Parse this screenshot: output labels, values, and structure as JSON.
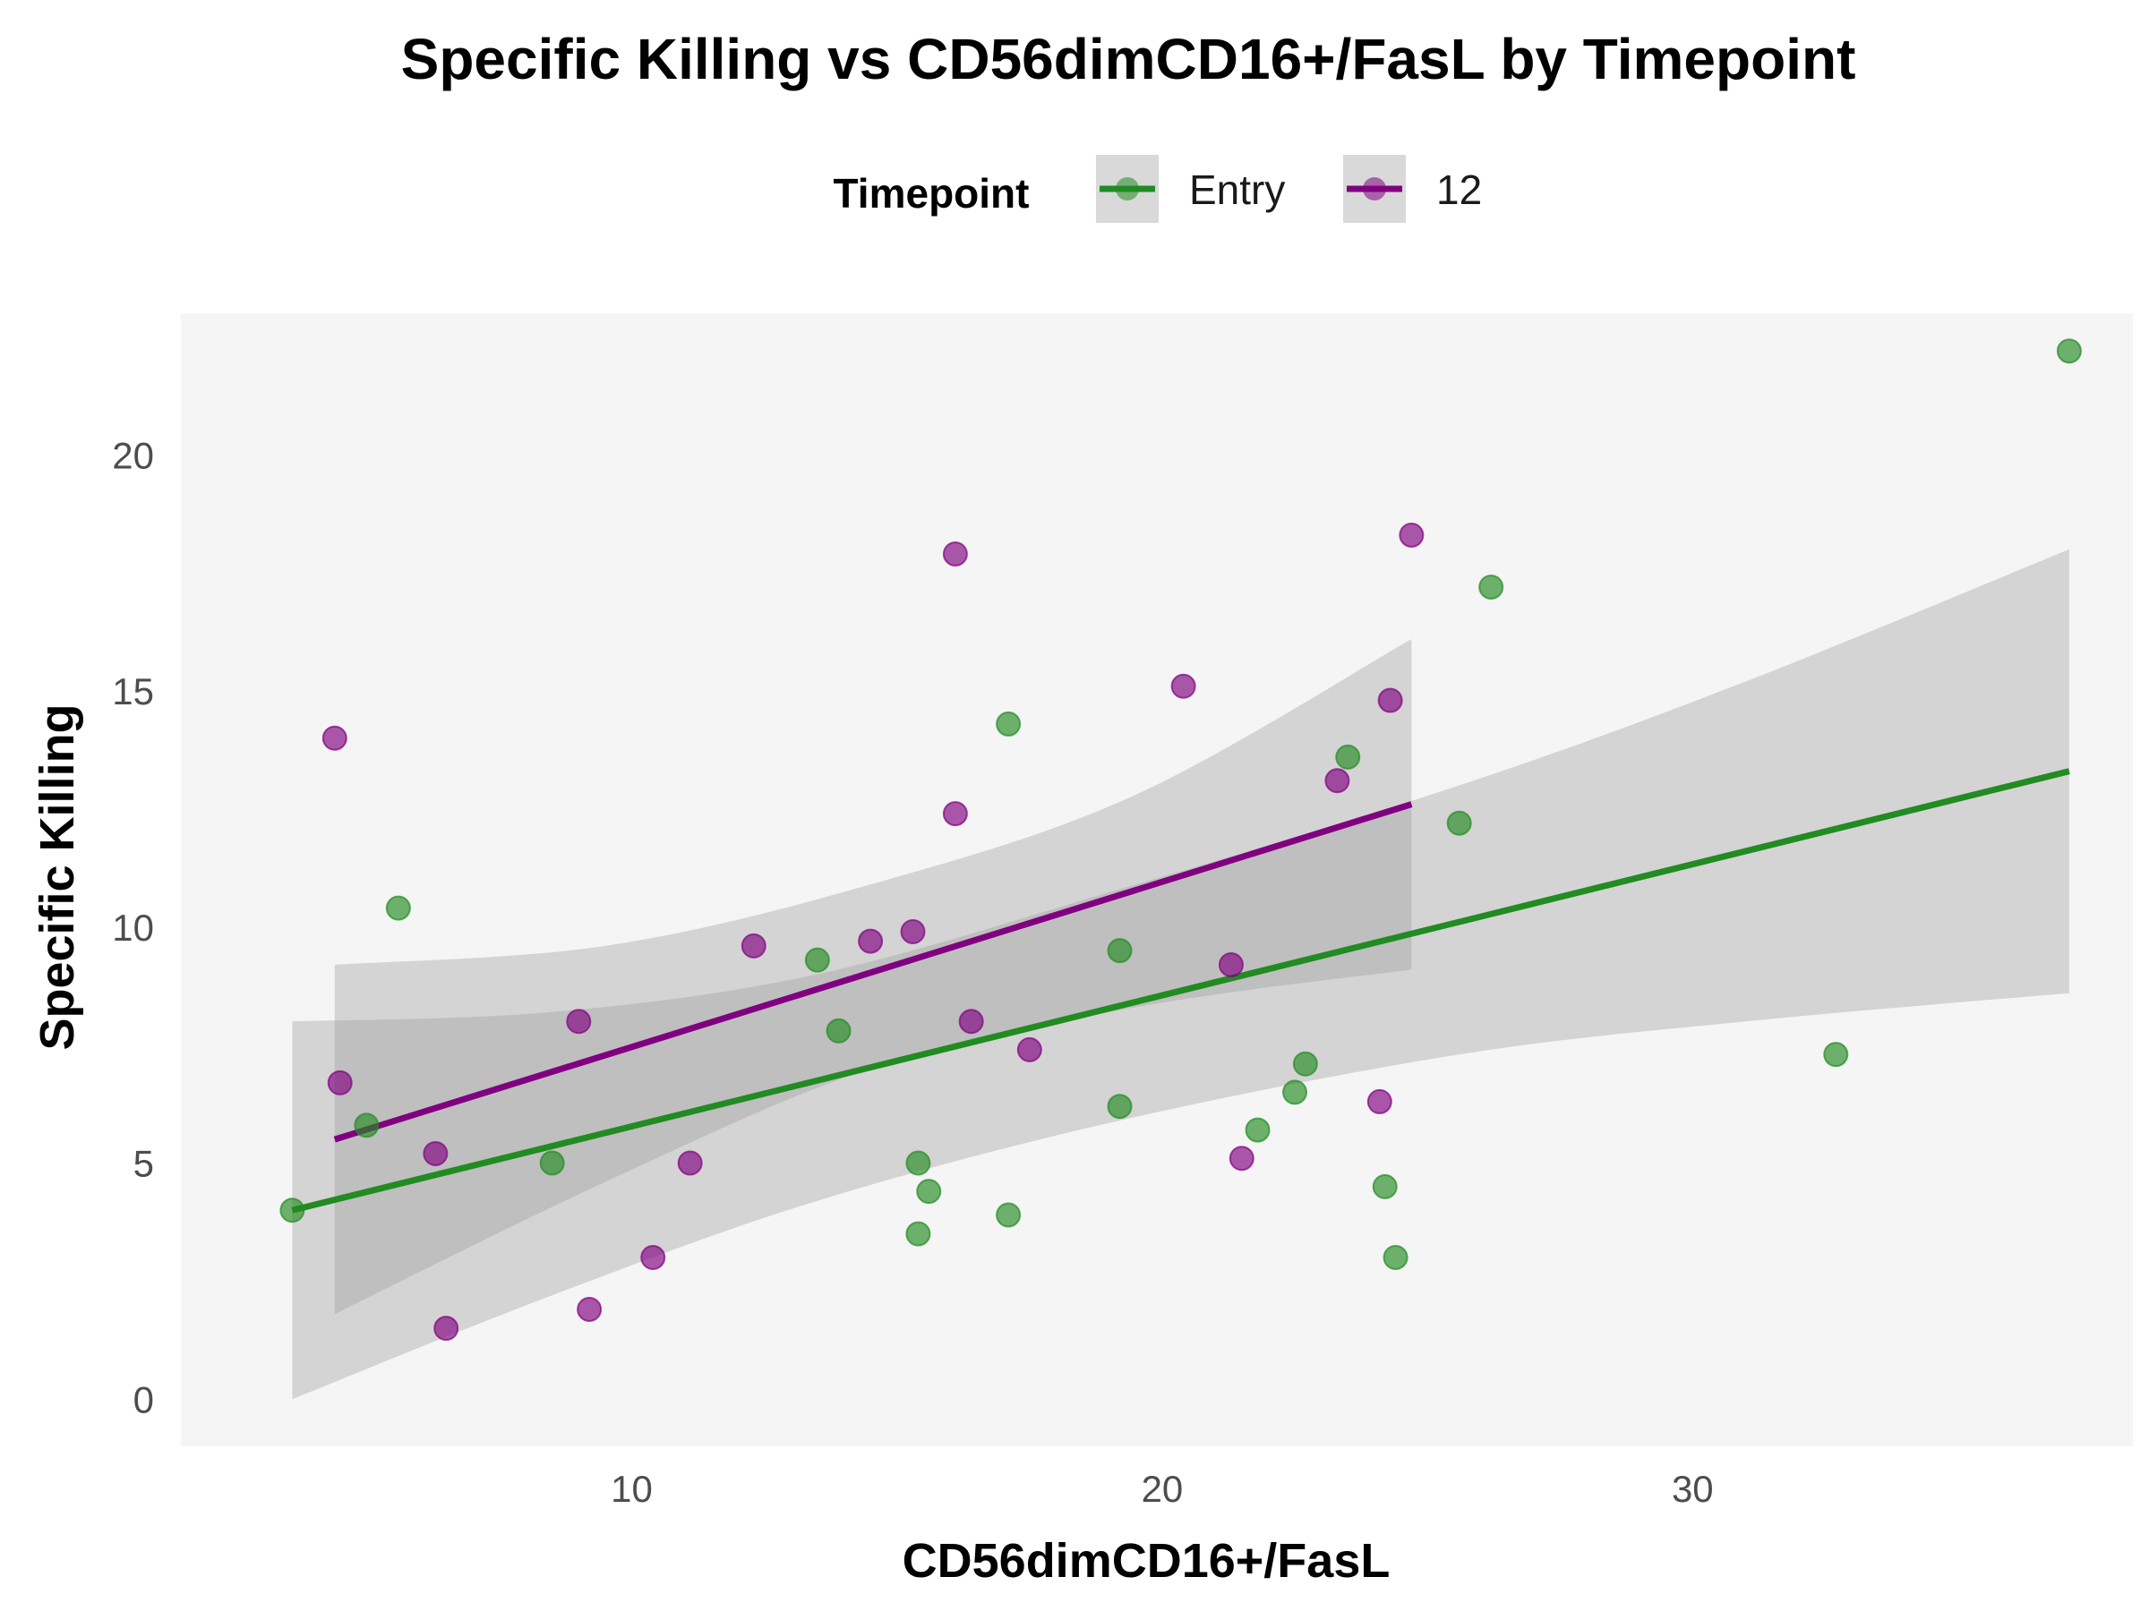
{
  "chart_data": {
    "type": "scatter",
    "title": "Specific Killing vs CD56dimCD16+/FasL by Timepoint",
    "xlabel": "CD56dimCD16+/FasL",
    "ylabel": "Specific Killing",
    "xlim": [
      1.5,
      38.3
    ],
    "ylim": [
      -1.0,
      23.0
    ],
    "x_ticks": [
      10,
      20,
      30
    ],
    "y_ticks": [
      0,
      5,
      10,
      15,
      20
    ],
    "grid": false,
    "panel_background": "#f5f5f5",
    "legend": {
      "title": "Timepoint",
      "position": "top"
    },
    "series": [
      {
        "name": "Entry",
        "color": "#228b22",
        "points": [
          {
            "x": 3.6,
            "y": 4.0
          },
          {
            "x": 5.0,
            "y": 5.8
          },
          {
            "x": 5.6,
            "y": 10.4
          },
          {
            "x": 8.5,
            "y": 5.0
          },
          {
            "x": 13.5,
            "y": 9.3
          },
          {
            "x": 13.9,
            "y": 7.8
          },
          {
            "x": 15.4,
            "y": 3.5
          },
          {
            "x": 15.4,
            "y": 5.0
          },
          {
            "x": 15.6,
            "y": 4.4
          },
          {
            "x": 17.1,
            "y": 14.3
          },
          {
            "x": 17.1,
            "y": 3.9
          },
          {
            "x": 19.2,
            "y": 9.5
          },
          {
            "x": 19.2,
            "y": 6.2
          },
          {
            "x": 21.8,
            "y": 5.7
          },
          {
            "x": 22.5,
            "y": 6.5
          },
          {
            "x": 22.7,
            "y": 7.1
          },
          {
            "x": 23.5,
            "y": 13.6
          },
          {
            "x": 24.2,
            "y": 4.5
          },
          {
            "x": 24.4,
            "y": 3.0
          },
          {
            "x": 25.6,
            "y": 12.2
          },
          {
            "x": 26.2,
            "y": 17.2
          },
          {
            "x": 32.7,
            "y": 7.3
          },
          {
            "x": 37.1,
            "y": 22.2
          }
        ],
        "fit": {
          "x": [
            3.6,
            37.1
          ],
          "y": [
            4.0,
            13.3
          ]
        },
        "ci_band": {
          "x": [
            3.6,
            8.5,
            13.5,
            19.2,
            25.6,
            31.0,
            37.1
          ],
          "lower": [
            0.0,
            2.2,
            4.2,
            5.9,
            7.3,
            8.0,
            8.6
          ],
          "upper": [
            8.0,
            8.2,
            9.0,
            10.8,
            13.0,
            15.2,
            18.0
          ]
        }
      },
      {
        "name": "12",
        "color": "#800080",
        "points": [
          {
            "x": 4.4,
            "y": 14.0
          },
          {
            "x": 4.5,
            "y": 6.7
          },
          {
            "x": 6.3,
            "y": 5.2
          },
          {
            "x": 6.5,
            "y": 1.5
          },
          {
            "x": 9.0,
            "y": 8.0
          },
          {
            "x": 9.2,
            "y": 1.9
          },
          {
            "x": 10.4,
            "y": 3.0
          },
          {
            "x": 11.1,
            "y": 5.0
          },
          {
            "x": 12.3,
            "y": 9.6
          },
          {
            "x": 14.5,
            "y": 9.7
          },
          {
            "x": 15.3,
            "y": 9.9
          },
          {
            "x": 16.1,
            "y": 17.9
          },
          {
            "x": 16.1,
            "y": 12.4
          },
          {
            "x": 16.4,
            "y": 8.0
          },
          {
            "x": 17.5,
            "y": 7.4
          },
          {
            "x": 20.4,
            "y": 15.1
          },
          {
            "x": 21.3,
            "y": 9.2
          },
          {
            "x": 21.5,
            "y": 5.1
          },
          {
            "x": 23.3,
            "y": 13.1
          },
          {
            "x": 24.1,
            "y": 6.3
          },
          {
            "x": 24.3,
            "y": 14.8
          },
          {
            "x": 24.7,
            "y": 18.3
          }
        ],
        "fit": {
          "x": [
            4.4,
            24.7
          ],
          "y": [
            5.5,
            12.6
          ]
        },
        "ci_band": {
          "x": [
            4.4,
            9.5,
            14.5,
            19.5,
            24.7
          ],
          "lower": [
            1.8,
            4.6,
            7.0,
            8.3,
            9.1
          ],
          "upper": [
            9.2,
            9.6,
            10.9,
            12.8,
            16.1
          ]
        }
      }
    ]
  }
}
